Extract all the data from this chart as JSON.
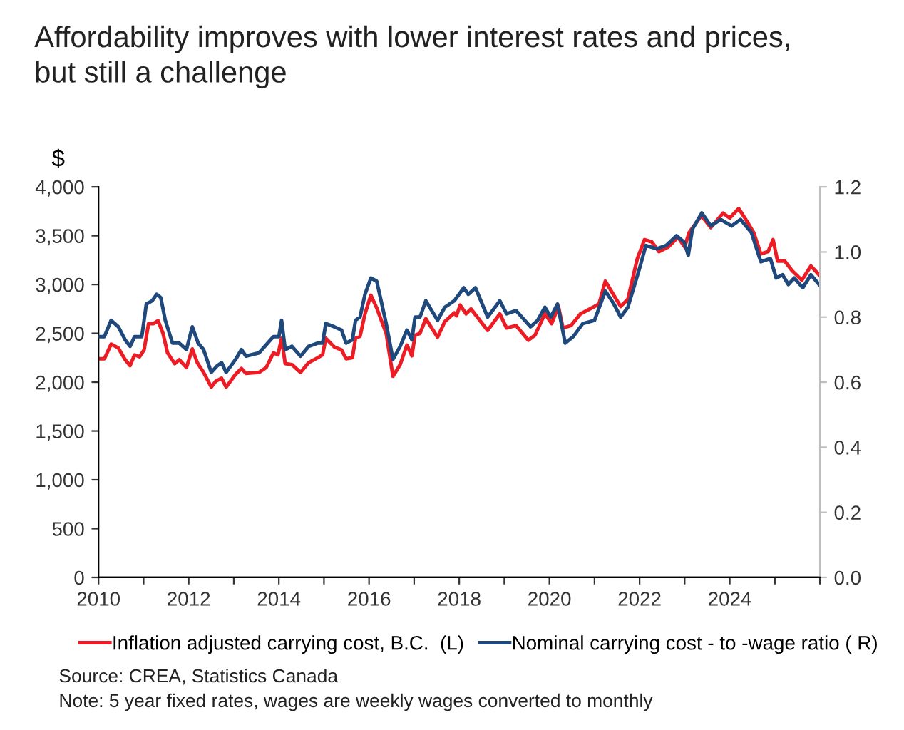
{
  "chart_data": {
    "type": "line",
    "title": "Affordability improves with lower interest rates and prices,\nbut still a challenge",
    "ylabel": "$",
    "xlim": [
      2010,
      2026
    ],
    "xticks": [
      2010,
      {
        "value": 2011,
        "label": null
      },
      2012,
      {
        "value": 2013,
        "label": null
      },
      2014,
      {
        "value": 2015,
        "label": null
      },
      2016,
      {
        "value": 2017,
        "label": null
      },
      2018,
      {
        "value": 2019,
        "label": null
      },
      2020,
      {
        "value": 2021,
        "label": null
      },
      2022,
      {
        "value": 2023,
        "label": null
      },
      2024,
      {
        "value": 2025,
        "label": null
      },
      {
        "value": 2026,
        "label": null
      }
    ],
    "ylim": [
      0,
      4000
    ],
    "yticks": [
      {
        "value": 0,
        "label": "0"
      },
      {
        "value": 500,
        "label": "500"
      },
      {
        "value": 1000,
        "label": "1,000"
      },
      {
        "value": 1500,
        "label": "1,500"
      },
      {
        "value": 2000,
        "label": "2,000"
      },
      {
        "value": 2500,
        "label": "2,500"
      },
      {
        "value": 3000,
        "label": "3,000"
      },
      {
        "value": 3500,
        "label": "3,500"
      },
      {
        "value": 4000,
        "label": "4,000"
      }
    ],
    "y2lim": [
      0,
      1.2
    ],
    "y2ticks": [
      {
        "value": 0,
        "label": "0.0"
      },
      {
        "value": 0.2,
        "label": "0.2"
      },
      {
        "value": 0.4,
        "label": "0.4"
      },
      {
        "value": 0.6,
        "label": "0.6"
      },
      {
        "value": 0.8,
        "label": "0.8"
      },
      {
        "value": 1.0,
        "label": "1.0"
      },
      {
        "value": 1.2,
        "label": "1.2"
      }
    ],
    "grid": false,
    "legend": "bottom",
    "series": [
      {
        "name": "Inflation adjusted carrying cost, B.C.  (L)",
        "color": "#ed1c24",
        "x": [
          2010.0,
          2010.13,
          2010.28,
          2010.44,
          2010.59,
          2010.7,
          2010.8,
          2010.91,
          2011.01,
          2011.11,
          2011.22,
          2011.32,
          2011.43,
          2011.53,
          2011.69,
          2011.79,
          2011.95,
          2012.08,
          2012.19,
          2012.33,
          2012.5,
          2012.6,
          2012.73,
          2012.83,
          2013.04,
          2013.17,
          2013.27,
          2013.56,
          2013.72,
          2013.88,
          2013.98,
          2014.06,
          2014.14,
          2014.29,
          2014.48,
          2014.66,
          2014.86,
          2014.97,
          2015.04,
          2015.23,
          2015.39,
          2015.49,
          2015.63,
          2015.7,
          2015.8,
          2015.91,
          2016.04,
          2016.17,
          2016.38,
          2016.53,
          2016.69,
          2016.84,
          2016.95,
          2017.02,
          2017.13,
          2017.26,
          2017.52,
          2017.68,
          2017.89,
          2017.94,
          2018.02,
          2018.15,
          2018.26,
          2018.63,
          2018.9,
          2019.05,
          2019.26,
          2019.53,
          2019.68,
          2019.9,
          2020.05,
          2020.2,
          2020.3,
          2020.48,
          2020.69,
          2020.9,
          2021.1,
          2021.24,
          2021.48,
          2021.58,
          2021.74,
          2021.95,
          2022.11,
          2022.27,
          2022.43,
          2022.64,
          2022.85,
          2023.0,
          2023.1,
          2023.37,
          2023.58,
          2023.85,
          2024.0,
          2024.2,
          2024.37,
          2024.53,
          2024.69,
          2024.85,
          2024.96,
          2025.06,
          2025.22,
          2025.38,
          2025.6,
          2025.8,
          2025.98
        ],
        "values": [
          2240,
          2240,
          2390,
          2350,
          2230,
          2170,
          2280,
          2260,
          2330,
          2600,
          2600,
          2630,
          2500,
          2300,
          2190,
          2230,
          2150,
          2340,
          2200,
          2100,
          1950,
          2010,
          2040,
          1950,
          2080,
          2140,
          2090,
          2100,
          2150,
          2300,
          2280,
          2450,
          2190,
          2180,
          2100,
          2200,
          2250,
          2280,
          2450,
          2360,
          2330,
          2240,
          2250,
          2450,
          2470,
          2700,
          2890,
          2760,
          2500,
          2060,
          2180,
          2380,
          2270,
          2480,
          2500,
          2650,
          2460,
          2620,
          2710,
          2680,
          2790,
          2700,
          2750,
          2530,
          2700,
          2555,
          2580,
          2430,
          2480,
          2700,
          2600,
          2776,
          2555,
          2580,
          2700,
          2750,
          2800,
          3035,
          2850,
          2776,
          2850,
          3265,
          3460,
          3437,
          3337,
          3386,
          3485,
          3386,
          3534,
          3705,
          3583,
          3731,
          3682,
          3778,
          3656,
          3534,
          3313,
          3337,
          3460,
          3240,
          3240,
          3143,
          3045,
          3190,
          3100
        ]
      },
      {
        "name": "Nominal carrying cost - to -wage ratio ( R)",
        "color": "#1f497d",
        "axis": "y2",
        "x": [
          2010.0,
          2010.13,
          2010.28,
          2010.44,
          2010.59,
          2010.7,
          2010.8,
          2010.96,
          2011.06,
          2011.19,
          2011.29,
          2011.38,
          2011.48,
          2011.64,
          2011.79,
          2011.95,
          2012.08,
          2012.21,
          2012.33,
          2012.5,
          2012.63,
          2012.73,
          2012.83,
          2013.04,
          2013.17,
          2013.27,
          2013.56,
          2013.88,
          2014.0,
          2014.06,
          2014.14,
          2014.29,
          2014.48,
          2014.66,
          2014.86,
          2014.97,
          2015.04,
          2015.23,
          2015.39,
          2015.49,
          2015.63,
          2015.7,
          2015.8,
          2015.91,
          2016.04,
          2016.17,
          2016.38,
          2016.53,
          2016.69,
          2016.84,
          2016.95,
          2017.02,
          2017.13,
          2017.26,
          2017.52,
          2017.68,
          2017.89,
          2018.1,
          2018.2,
          2018.36,
          2018.63,
          2018.9,
          2019.05,
          2019.26,
          2019.58,
          2019.74,
          2019.9,
          2020.03,
          2020.18,
          2020.35,
          2020.53,
          2020.74,
          2021.0,
          2021.24,
          2021.43,
          2021.58,
          2021.74,
          2022.0,
          2022.14,
          2022.38,
          2022.59,
          2022.82,
          2022.99,
          2023.08,
          2023.17,
          2023.38,
          2023.58,
          2023.8,
          2024.04,
          2024.24,
          2024.48,
          2024.69,
          2024.9,
          2025.03,
          2025.17,
          2025.3,
          2025.43,
          2025.62,
          2025.8,
          2025.98
        ],
        "values": [
          0.74,
          0.74,
          0.79,
          0.77,
          0.73,
          0.71,
          0.74,
          0.74,
          0.84,
          0.85,
          0.87,
          0.86,
          0.79,
          0.72,
          0.72,
          0.7,
          0.77,
          0.72,
          0.7,
          0.63,
          0.65,
          0.66,
          0.63,
          0.67,
          0.7,
          0.68,
          0.69,
          0.74,
          0.74,
          0.79,
          0.7,
          0.71,
          0.68,
          0.71,
          0.72,
          0.72,
          0.78,
          0.77,
          0.76,
          0.72,
          0.73,
          0.79,
          0.8,
          0.87,
          0.92,
          0.91,
          0.78,
          0.67,
          0.71,
          0.76,
          0.73,
          0.8,
          0.8,
          0.85,
          0.79,
          0.83,
          0.85,
          0.89,
          0.87,
          0.89,
          0.8,
          0.85,
          0.81,
          0.82,
          0.77,
          0.79,
          0.83,
          0.8,
          0.84,
          0.72,
          0.74,
          0.78,
          0.79,
          0.88,
          0.84,
          0.8,
          0.83,
          0.95,
          1.02,
          1.01,
          1.02,
          1.05,
          1.03,
          0.99,
          1.07,
          1.12,
          1.08,
          1.1,
          1.08,
          1.1,
          1.06,
          0.97,
          0.98,
          0.92,
          0.93,
          0.9,
          0.92,
          0.89,
          0.93,
          0.9
        ]
      }
    ],
    "annotations": [
      "Source: CREA, Statistics Canada",
      "Note: 5 year fixed rates, wages are weekly wages converted to monthly"
    ]
  }
}
